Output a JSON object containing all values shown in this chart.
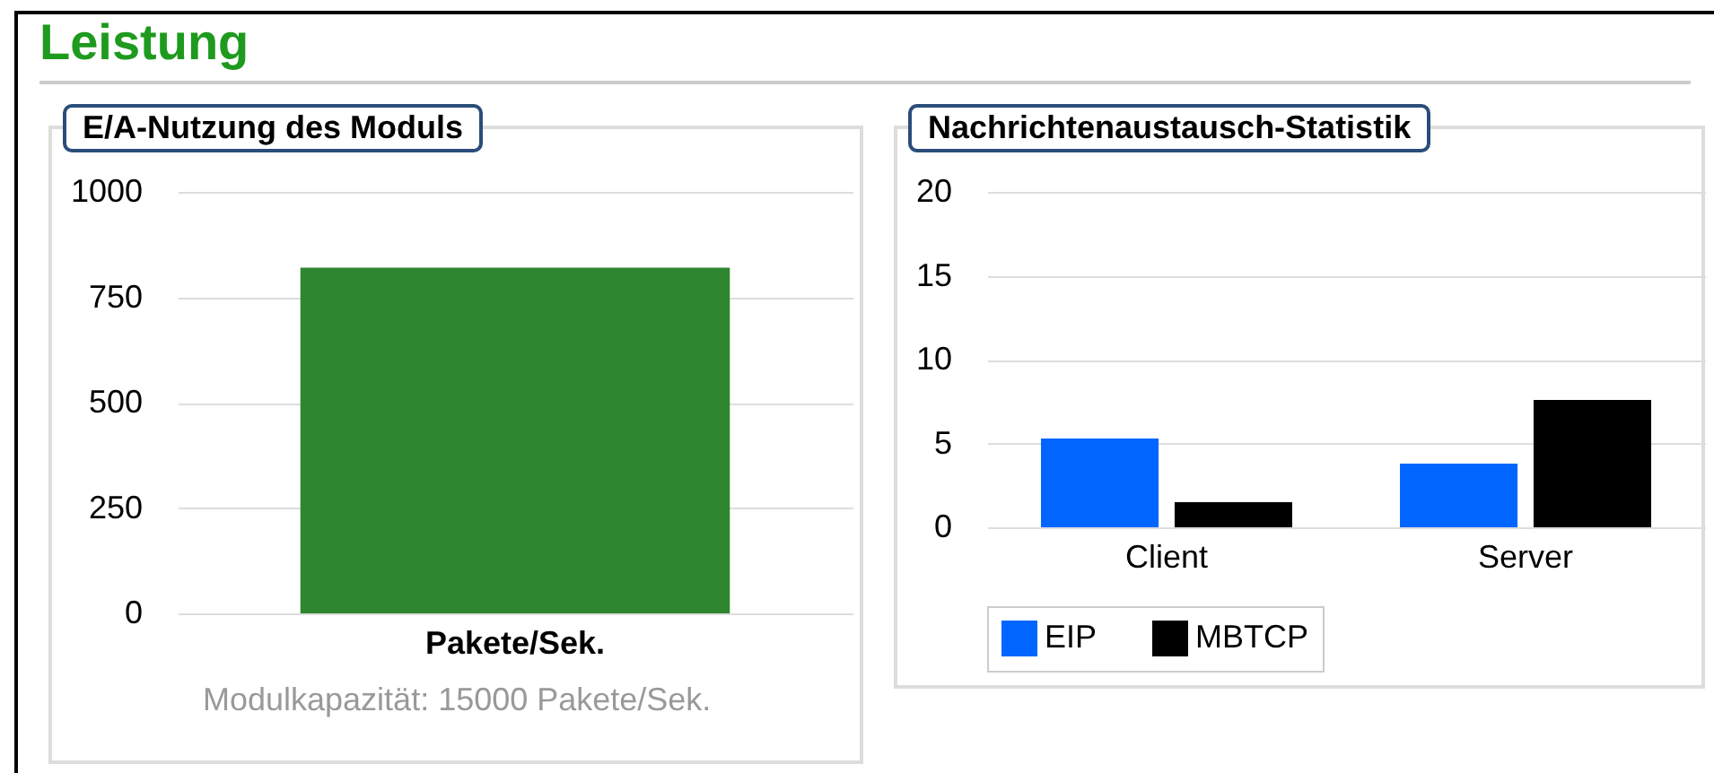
{
  "chart_data": [
    {
      "type": "bar",
      "title": "E/A-Nutzung des Moduls",
      "annotations": [
        "Leistung",
        "Modulkapazität: 15000 Pakete/Sek."
      ],
      "categories": [
        "Pakete/Sek."
      ],
      "values": [
        820
      ],
      "color": "#2e862e",
      "ylim": [
        0,
        1000
      ],
      "yticks": [
        0,
        250,
        500,
        750,
        1000
      ],
      "grid": "y",
      "legend": false
    },
    {
      "type": "bar",
      "title": "Nachrichtenaustausch-Statistik",
      "categories": [
        "Client",
        "Server"
      ],
      "series": [
        {
          "name": "EIP",
          "color": "#0066ff",
          "values": [
            5.3,
            3.8
          ]
        },
        {
          "name": "MBTCP",
          "color": "#000000",
          "values": [
            1.5,
            7.6
          ]
        }
      ],
      "ylim": [
        0,
        20
      ],
      "yticks": [
        0,
        5,
        10,
        15,
        20
      ],
      "grid": "y",
      "legend": "bottom"
    }
  ]
}
